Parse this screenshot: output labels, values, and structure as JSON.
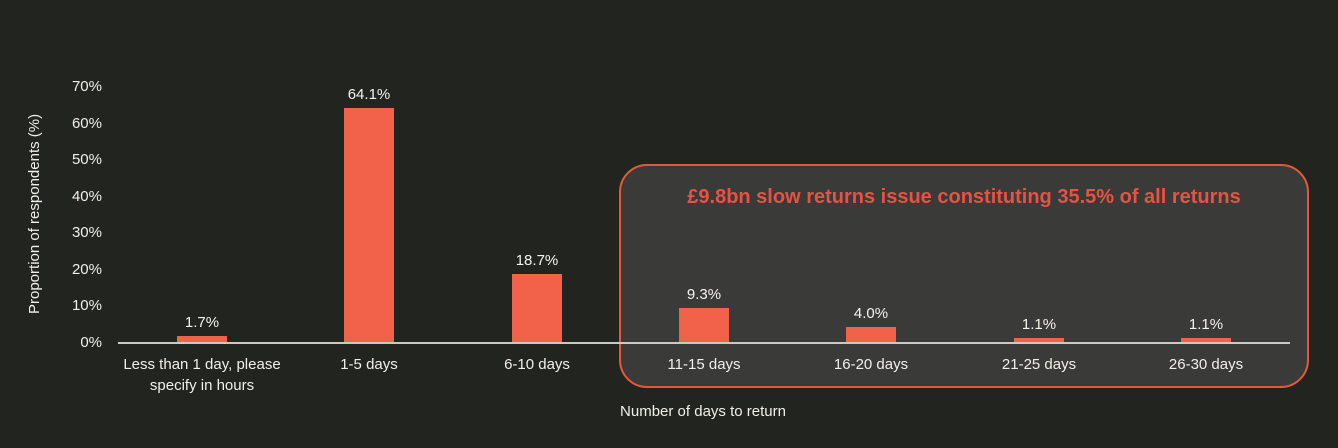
{
  "chart_data": {
    "type": "bar",
    "categories": [
      "Less than 1 day, please specify in hours",
      "1-5 days",
      "6-10 days",
      "11-15 days",
      "16-20 days",
      "21-25 days",
      "26-30 days"
    ],
    "values": [
      1.7,
      64.1,
      18.7,
      9.3,
      4.0,
      1.1,
      1.1
    ],
    "value_labels": [
      "1.7%",
      "64.1%",
      "18.7%",
      "9.3%",
      "4.0%",
      "1.1%",
      "1.1%"
    ],
    "title": "",
    "xlabel": "Number of days to return",
    "ylabel": "Proportion of respondents (%)",
    "ylim": [
      0,
      70
    ],
    "yticks": [
      "0%",
      "10%",
      "20%",
      "30%",
      "40%",
      "50%",
      "60%",
      "70%"
    ],
    "grid": false,
    "legend": null,
    "colors": {
      "background": "#22251f",
      "bar": "#f2624a",
      "axis_line": "#cbc9c3",
      "text": "#f1efe9",
      "annotation_border": "#e2593b",
      "annotation_text": "#e65243",
      "annotation_fill": "#3a3a38"
    },
    "annotation": {
      "text": "£9.8bn slow returns issue constituting 35.5% of all returns",
      "covers_categories": [
        "11-15 days",
        "16-20 days",
        "21-25 days",
        "26-30 days"
      ]
    }
  }
}
